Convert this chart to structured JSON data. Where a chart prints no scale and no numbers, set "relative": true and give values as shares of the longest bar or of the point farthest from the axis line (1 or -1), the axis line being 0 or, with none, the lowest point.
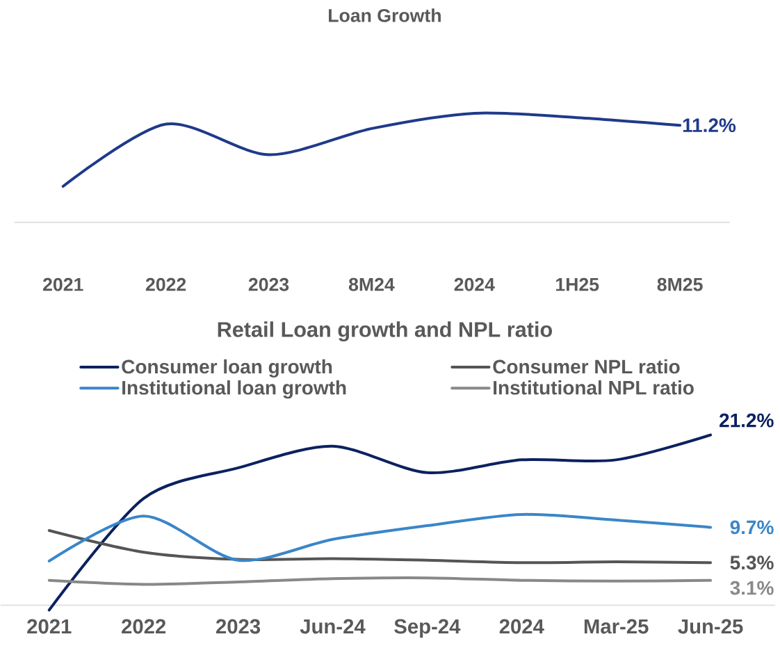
{
  "chart_data": [
    {
      "type": "line",
      "title": "Loan Growth",
      "relative": true,
      "categories": [
        "2021",
        "2022",
        "2023",
        "8M24",
        "2024",
        "1H25",
        "8M25"
      ],
      "annotations": [
        {
          "text": "11.2%",
          "x": "8M25",
          "y": 0.89
        }
      ],
      "series": [
        {
          "color": "#1f3a8a",
          "values": [
            0.33,
            0.9,
            0.62,
            0.86,
            1,
            0.96,
            0.89
          ]
        }
      ]
    },
    {
      "type": "line",
      "title": "Retail Loan growth and NPL ratio",
      "tick_labels": "x",
      "legend": "top",
      "categories": [
        "2021",
        "2022",
        "2023",
        "Jun-24",
        "Sep-24",
        "2024",
        "Mar-25",
        "Jun-25"
      ],
      "series": [
        {
          "name": "Consumer loan growth",
          "color": "#0b2160",
          "values": [
            -0.6,
            13.3,
            17.1,
            19.8,
            16.5,
            18.1,
            18.1,
            21.2
          ],
          "value_labels": [
            null,
            null,
            null,
            null,
            null,
            null,
            null,
            "21.2%"
          ]
        },
        {
          "name": "Consumer NPL ratio",
          "color": "#555555",
          "values": [
            9.3,
            6.6,
            5.7,
            5.8,
            5.6,
            5.3,
            5.4,
            5.3
          ],
          "value_labels": [
            null,
            null,
            null,
            null,
            null,
            null,
            null,
            "5.3%"
          ]
        },
        {
          "name": "Institutional loan growth",
          "color": "#3a86c8",
          "values": [
            5.5,
            11.1,
            5.6,
            8.2,
            9.9,
            11.3,
            10.6,
            9.7
          ],
          "value_labels": [
            null,
            null,
            null,
            null,
            null,
            null,
            null,
            "9.7%"
          ]
        },
        {
          "name": "Institutional NPL ratio",
          "color": "#888888",
          "values": [
            3.1,
            2.6,
            2.9,
            3.3,
            3.4,
            3.1,
            3.0,
            3.1
          ],
          "value_labels": [
            null,
            null,
            null,
            null,
            null,
            null,
            null,
            "3.1%"
          ]
        }
      ]
    }
  ]
}
